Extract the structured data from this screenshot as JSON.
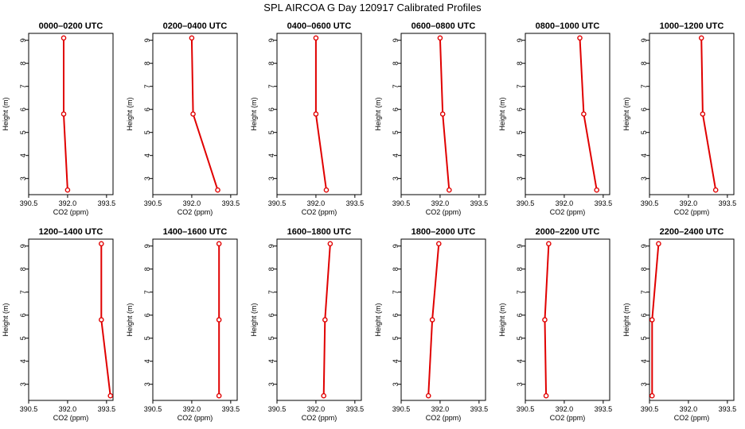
{
  "figure_title": "SPL AIRCOA G  Day 120917  Calibrated Profiles",
  "colors": {
    "series": "#e00000",
    "axis": "#000000",
    "background": "#ffffff"
  },
  "chart_data": [
    {
      "type": "line",
      "title": "0000–0200 UTC",
      "xlabel": "CO2 (ppm)",
      "ylabel": "Height (m)",
      "xlim": [
        390.5,
        393.75
      ],
      "ylim": [
        2.3,
        9.3
      ],
      "xticks": [
        "390.5",
        "392.0",
        "393.5"
      ],
      "yticks": [
        "3",
        "4",
        "5",
        "6",
        "7",
        "8",
        "9"
      ],
      "x": [
        392.0,
        391.85,
        391.85
      ],
      "y": [
        2.5,
        5.8,
        9.1
      ]
    },
    {
      "type": "line",
      "title": "0200–0400 UTC",
      "xlabel": "CO2 (ppm)",
      "ylabel": "Height (m)",
      "xlim": [
        390.5,
        393.75
      ],
      "ylim": [
        2.3,
        9.3
      ],
      "xticks": [
        "390.5",
        "392.0",
        "393.5"
      ],
      "yticks": [
        "3",
        "4",
        "5",
        "6",
        "7",
        "8",
        "9"
      ],
      "x": [
        393.0,
        392.05,
        392.0
      ],
      "y": [
        2.5,
        5.8,
        9.1
      ]
    },
    {
      "type": "line",
      "title": "0400–0600 UTC",
      "xlabel": "CO2 (ppm)",
      "ylabel": "Height (m)",
      "xlim": [
        390.5,
        393.75
      ],
      "ylim": [
        2.3,
        9.3
      ],
      "xticks": [
        "390.5",
        "392.0",
        "393.5"
      ],
      "yticks": [
        "3",
        "4",
        "5",
        "6",
        "7",
        "8",
        "9"
      ],
      "x": [
        392.4,
        392.0,
        392.0
      ],
      "y": [
        2.5,
        5.8,
        9.1
      ]
    },
    {
      "type": "line",
      "title": "0600–0800 UTC",
      "xlabel": "CO2 (ppm)",
      "ylabel": "Height (m)",
      "xlim": [
        390.5,
        393.75
      ],
      "ylim": [
        2.3,
        9.3
      ],
      "xticks": [
        "390.5",
        "392.0",
        "393.5"
      ],
      "yticks": [
        "3",
        "4",
        "5",
        "6",
        "7",
        "8",
        "9"
      ],
      "x": [
        392.35,
        392.1,
        392.0
      ],
      "y": [
        2.5,
        5.8,
        9.1
      ]
    },
    {
      "type": "line",
      "title": "0800–1000 UTC",
      "xlabel": "CO2 (ppm)",
      "ylabel": "Height (m)",
      "xlim": [
        390.5,
        393.75
      ],
      "ylim": [
        2.3,
        9.3
      ],
      "xticks": [
        "390.5",
        "392.0",
        "393.5"
      ],
      "yticks": [
        "3",
        "4",
        "5",
        "6",
        "7",
        "8",
        "9"
      ],
      "x": [
        393.25,
        392.75,
        392.6
      ],
      "y": [
        2.5,
        5.8,
        9.1
      ]
    },
    {
      "type": "line",
      "title": "1000–1200 UTC",
      "xlabel": "CO2 (ppm)",
      "ylabel": "Height (m)",
      "xlim": [
        390.5,
        393.75
      ],
      "ylim": [
        2.3,
        9.3
      ],
      "xticks": [
        "390.5",
        "392.0",
        "393.5"
      ],
      "yticks": [
        "3",
        "4",
        "5",
        "6",
        "7",
        "8",
        "9"
      ],
      "x": [
        393.05,
        392.55,
        392.5
      ],
      "y": [
        2.5,
        5.8,
        9.1
      ]
    },
    {
      "type": "line",
      "title": "1200–1400 UTC",
      "xlabel": "CO2 (ppm)",
      "ylabel": "Height (m)",
      "xlim": [
        390.5,
        393.75
      ],
      "ylim": [
        2.3,
        9.3
      ],
      "xticks": [
        "390.5",
        "392.0",
        "393.5"
      ],
      "yticks": [
        "3",
        "4",
        "5",
        "6",
        "7",
        "8",
        "9"
      ],
      "x": [
        393.65,
        393.3,
        393.3
      ],
      "y": [
        2.5,
        5.8,
        9.1
      ]
    },
    {
      "type": "line",
      "title": "1400–1600 UTC",
      "xlabel": "CO2 (ppm)",
      "ylabel": "Height (m)",
      "xlim": [
        390.5,
        393.75
      ],
      "ylim": [
        2.3,
        9.3
      ],
      "xticks": [
        "390.5",
        "392.0",
        "393.5"
      ],
      "yticks": [
        "3",
        "4",
        "5",
        "6",
        "7",
        "8",
        "9"
      ],
      "x": [
        393.05,
        393.05,
        393.05
      ],
      "y": [
        2.5,
        5.8,
        9.1
      ]
    },
    {
      "type": "line",
      "title": "1600–1800 UTC",
      "xlabel": "CO2 (ppm)",
      "ylabel": "Height (m)",
      "xlim": [
        390.5,
        393.75
      ],
      "ylim": [
        2.3,
        9.3
      ],
      "xticks": [
        "390.5",
        "392.0",
        "393.5"
      ],
      "yticks": [
        "3",
        "4",
        "5",
        "6",
        "7",
        "8",
        "9"
      ],
      "x": [
        392.3,
        392.35,
        392.55
      ],
      "y": [
        2.5,
        5.8,
        9.1
      ]
    },
    {
      "type": "line",
      "title": "1800–2000 UTC",
      "xlabel": "CO2 (ppm)",
      "ylabel": "Height (m)",
      "xlim": [
        390.5,
        393.75
      ],
      "ylim": [
        2.3,
        9.3
      ],
      "xticks": [
        "390.5",
        "392.0",
        "393.5"
      ],
      "yticks": [
        "3",
        "4",
        "5",
        "6",
        "7",
        "8",
        "9"
      ],
      "x": [
        391.55,
        391.7,
        391.95
      ],
      "y": [
        2.5,
        5.8,
        9.1
      ]
    },
    {
      "type": "line",
      "title": "2000–2200 UTC",
      "xlabel": "CO2 (ppm)",
      "ylabel": "Height (m)",
      "xlim": [
        390.5,
        393.75
      ],
      "ylim": [
        2.3,
        9.3
      ],
      "xticks": [
        "390.5",
        "392.0",
        "393.5"
      ],
      "yticks": [
        "3",
        "4",
        "5",
        "6",
        "7",
        "8",
        "9"
      ],
      "x": [
        391.3,
        391.25,
        391.4
      ],
      "y": [
        2.5,
        5.8,
        9.1
      ]
    },
    {
      "type": "line",
      "title": "2200–2400 UTC",
      "xlabel": "CO2 (ppm)",
      "ylabel": "Height (m)",
      "xlim": [
        390.5,
        393.75
      ],
      "ylim": [
        2.3,
        9.3
      ],
      "xticks": [
        "390.5",
        "392.0",
        "393.5"
      ],
      "yticks": [
        "3",
        "4",
        "5",
        "6",
        "7",
        "8",
        "9"
      ],
      "x": [
        390.6,
        390.6,
        390.85
      ],
      "y": [
        2.5,
        5.8,
        9.1
      ]
    }
  ]
}
